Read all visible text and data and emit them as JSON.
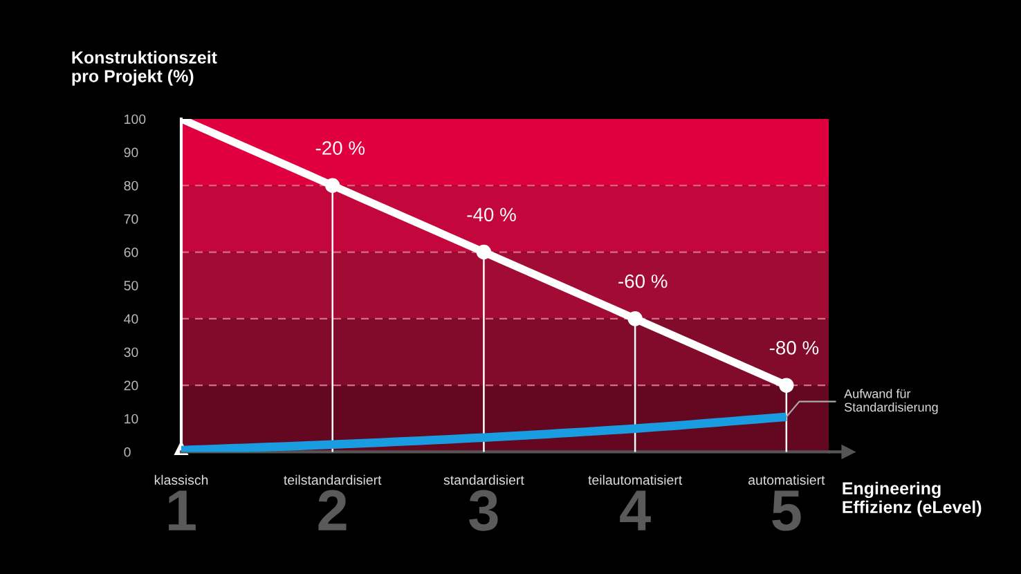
{
  "chart_data": {
    "type": "line",
    "xlabel": "Engineering\nEffizienz (eLevel)",
    "ylabel": "Konstruktionszeit\npro Projekt (%)",
    "categories": [
      "klassisch",
      "teilstandardisiert",
      "standardisiert",
      "teilautomatisiert",
      "automatisiert"
    ],
    "series": [
      {
        "color": "#ffffff",
        "values": [
          100,
          80,
          60,
          40,
          20
        ]
      },
      {
        "type": "lollipop",
        "color": "#ffffff",
        "marker": "circle",
        "values": [
          null,
          80,
          60,
          40,
          20
        ]
      },
      {
        "color": "#1a9de0",
        "values": [
          0.5,
          2.2,
          4.3,
          7.0,
          10.5
        ]
      }
    ],
    "ylim": [
      0,
      100
    ],
    "yticks": [
      0,
      10,
      20,
      30,
      40,
      50,
      60,
      70,
      80,
      90,
      100
    ],
    "bands": [
      {
        "axis": "y",
        "from": 0,
        "to": 20,
        "color": "#640720"
      },
      {
        "axis": "y",
        "from": 20,
        "to": 40,
        "color": "#820a2a"
      },
      {
        "axis": "y",
        "from": 40,
        "to": 60,
        "color": "#a20b33"
      },
      {
        "axis": "y",
        "from": 60,
        "to": 80,
        "color": "#c3063b"
      },
      {
        "axis": "y",
        "from": 80,
        "to": 100,
        "color": "#e00040"
      }
    ],
    "ref_lines": [
      {
        "axis": "y",
        "value": 20,
        "color": "#d46f8a",
        "line_style": "dashed"
      },
      {
        "axis": "y",
        "value": 40,
        "color": "#d46f8a",
        "line_style": "dashed"
      },
      {
        "axis": "y",
        "value": 60,
        "color": "#d46f8a",
        "line_style": "dashed"
      },
      {
        "axis": "y",
        "value": 80,
        "color": "#d46f8a",
        "line_style": "dashed"
      }
    ],
    "annotations": [
      {
        "text": "-20 %",
        "x": "teilstandardisiert",
        "y": 80
      },
      {
        "text": "-40 %",
        "x": "standardisiert",
        "y": 60
      },
      {
        "text": "-60 %",
        "x": "teilautomatisiert",
        "y": 40
      },
      {
        "text": "-80 %",
        "x": "automatisiert",
        "y": 20
      },
      {
        "text": "Aufwand für\nStandardisierung",
        "x": "automatisiert",
        "y": 10.5
      },
      "1",
      "2",
      "3",
      "4",
      "5"
    ],
    "grid": false
  }
}
